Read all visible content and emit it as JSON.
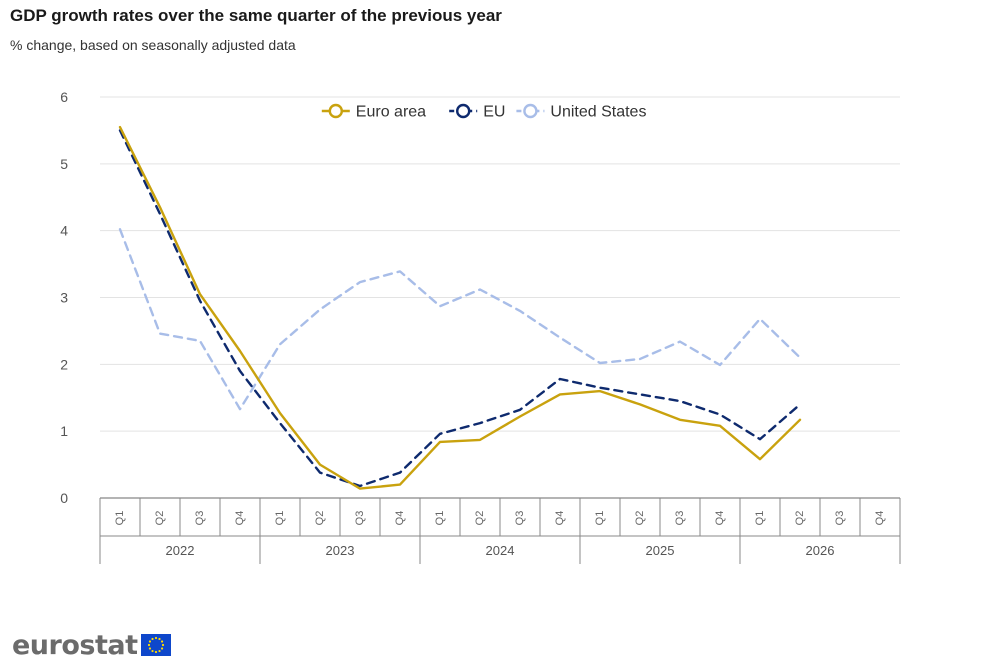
{
  "header": {
    "title": "GDP growth rates over the same quarter of the previous year",
    "subtitle": "% change, based on seasonally adjusted data"
  },
  "branding": {
    "wordmark": "eurostat",
    "flag_icon": "eu-flag-icon"
  },
  "colors": {
    "euro_area": "#c9a20e",
    "eu": "#0e2a6e",
    "united_states": "#a8bde8"
  },
  "chart_data": {
    "type": "line",
    "title": "GDP growth rates over the same quarter of the previous year",
    "subtitle": "% change, based on seasonally adjusted data",
    "xlabel": "",
    "ylabel": "",
    "ylim": [
      0,
      6
    ],
    "yticks": [
      "0",
      "1",
      "2",
      "3",
      "4",
      "5",
      "6"
    ],
    "grid": true,
    "legend": "top-center",
    "quarters": [
      "Q1",
      "Q2",
      "Q3",
      "Q4",
      "Q1",
      "Q2",
      "Q3",
      "Q4",
      "Q1",
      "Q2",
      "Q3",
      "Q4",
      "Q1",
      "Q2",
      "Q3",
      "Q4",
      "Q1",
      "Q2",
      "Q3",
      "Q4"
    ],
    "years": [
      "2022",
      "2023",
      "2024",
      "2025",
      "2026"
    ],
    "series": [
      {
        "name": "Euro area",
        "style": "solid",
        "values": [
          5.55,
          4.35,
          3.05,
          2.2,
          1.27,
          0.5,
          0.14,
          0.2,
          0.84,
          0.87,
          1.22,
          1.55,
          1.6,
          1.4,
          1.17,
          1.08,
          0.58,
          1.17,
          null,
          null
        ]
      },
      {
        "name": "EU",
        "style": "dashed",
        "values": [
          5.5,
          4.25,
          2.95,
          1.9,
          1.12,
          0.38,
          0.18,
          0.38,
          0.96,
          1.12,
          1.32,
          1.78,
          1.65,
          1.55,
          1.45,
          1.25,
          0.88,
          1.4,
          null,
          null
        ]
      },
      {
        "name": "United States",
        "style": "dashed",
        "values": [
          4.02,
          2.46,
          2.35,
          1.33,
          2.3,
          2.82,
          3.23,
          3.39,
          2.87,
          3.12,
          2.8,
          2.4,
          2.02,
          2.08,
          2.34,
          1.99,
          2.68,
          2.1,
          null,
          null
        ]
      }
    ]
  }
}
